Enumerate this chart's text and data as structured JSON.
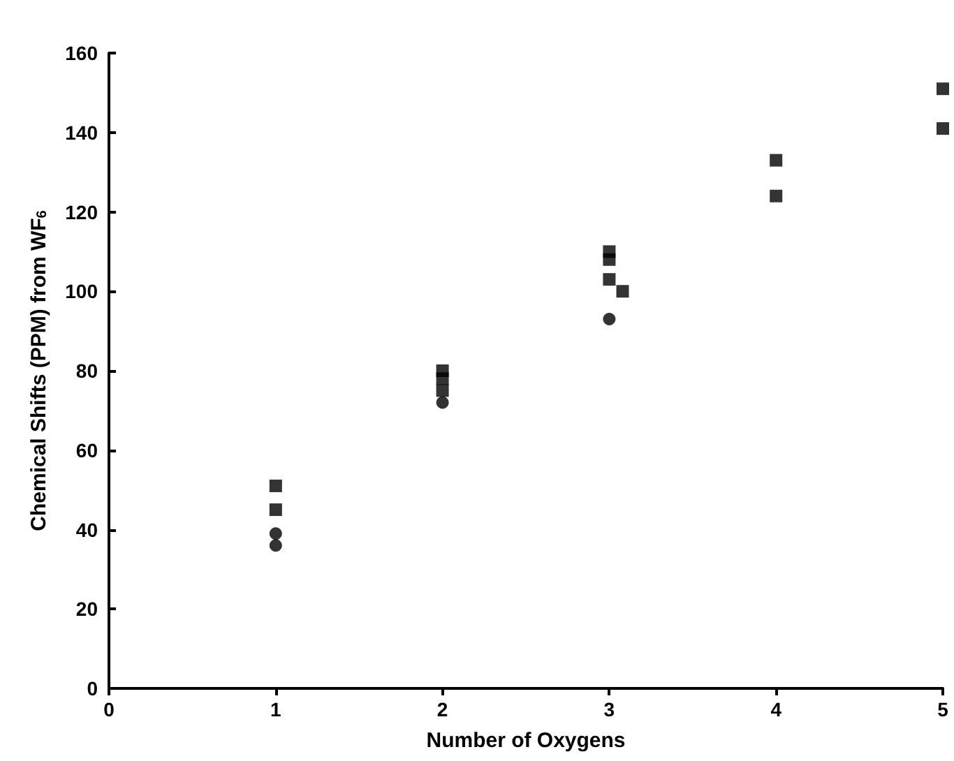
{
  "chart_data": {
    "type": "scatter",
    "xlabel": "Number of Oxygens",
    "ylabel": "Chemical Shifts (PPM) from WF$_{6}$",
    "xlim": [
      0,
      5
    ],
    "xticks": [
      0,
      1,
      2,
      3,
      4,
      5
    ],
    "ylim": [
      0,
      160
    ],
    "yticks": [
      0,
      20,
      40,
      60,
      80,
      100,
      120,
      140,
      160
    ],
    "grid": false,
    "series": [
      {
        "color": "#000000",
        "marker": "square",
        "x": [
          1,
          2,
          2,
          3,
          3,
          4,
          5
        ],
        "values": [
          51,
          80,
          78,
          110,
          108,
          133,
          151
        ]
      },
      {
        "color": "#000000",
        "marker": "square",
        "x": [
          1,
          2,
          3,
          3.08,
          4,
          5
        ],
        "values": [
          45,
          75,
          103,
          100,
          124,
          141
        ]
      },
      {
        "color": "#000000",
        "marker": "circle",
        "x": [
          1
        ],
        "values": [
          39
        ]
      },
      {
        "color": "#000000",
        "marker": "circle",
        "x": [
          1,
          2,
          3
        ],
        "values": [
          36,
          72,
          93
        ]
      }
    ]
  }
}
